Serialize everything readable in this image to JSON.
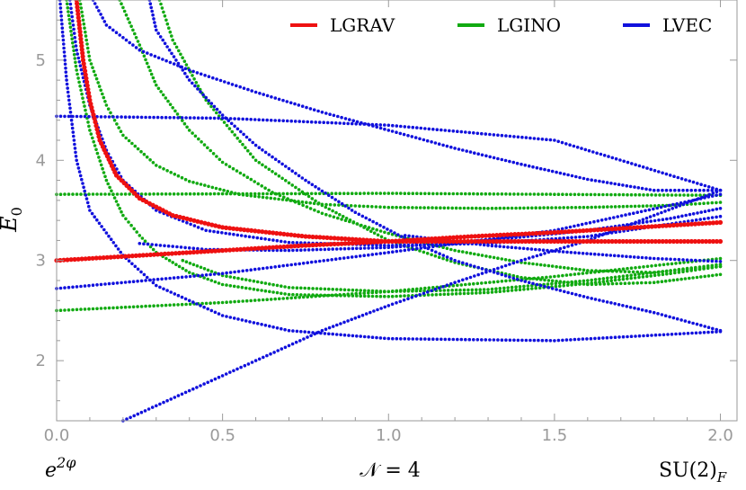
{
  "chart_data": {
    "type": "scatter",
    "xlim": [
      0,
      2.05
    ],
    "ylim": [
      1.4,
      5.6
    ],
    "xticks": [
      "0.0",
      "0.5",
      "1.0",
      "1.5",
      "2.0"
    ],
    "yticks": [
      "2",
      "3",
      "4",
      "5"
    ],
    "ylabel_main": "E",
    "ylabel_sub": "0",
    "grid": false,
    "legend_position": "top-right",
    "bottom_labels": {
      "left_base": "e",
      "left_sup": "2φ",
      "center": "𝒩 = 4",
      "right_base": "SU(2)",
      "right_sub": "F"
    },
    "colors": {
      "LGRAV": "#ee1111",
      "LGINO": "#11aa11",
      "LVEC": "#1111dd"
    },
    "series": [
      {
        "name": "LGRAV",
        "color": "#ee1111",
        "curves": [
          {
            "points": [
              [
                0,
                3.0
              ],
              [
                0.25,
                3.05
              ],
              [
                0.5,
                3.1
              ],
              [
                0.75,
                3.15
              ],
              [
                1.0,
                3.19
              ],
              [
                1.25,
                3.24
              ],
              [
                1.5,
                3.28
              ],
              [
                1.75,
                3.33
              ],
              [
                2.0,
                3.38
              ]
            ]
          },
          {
            "points": [
              [
                0.06,
                5.6
              ],
              [
                0.08,
                5.0
              ],
              [
                0.1,
                4.6
              ],
              [
                0.13,
                4.2
              ],
              [
                0.18,
                3.85
              ],
              [
                0.25,
                3.62
              ],
              [
                0.35,
                3.45
              ],
              [
                0.5,
                3.33
              ],
              [
                0.75,
                3.24
              ],
              [
                1.0,
                3.19
              ],
              [
                1.5,
                3.19
              ],
              [
                2.0,
                3.19
              ]
            ]
          }
        ]
      },
      {
        "name": "LGINO",
        "color": "#11aa11",
        "curves": [
          {
            "points": [
              [
                0,
                3.66
              ],
              [
                0.5,
                3.665
              ],
              [
                1.0,
                3.67
              ],
              [
                1.5,
                3.66
              ],
              [
                2.0,
                3.65
              ]
            ]
          },
          {
            "points": [
              [
                0,
                2.5
              ],
              [
                0.5,
                2.58
              ],
              [
                1.0,
                2.69
              ],
              [
                1.5,
                2.84
              ],
              [
                2.0,
                3.02
              ]
            ]
          },
          {
            "points": [
              [
                0.03,
                5.6
              ],
              [
                0.06,
                4.9
              ],
              [
                0.1,
                4.3
              ],
              [
                0.15,
                3.8
              ],
              [
                0.2,
                3.45
              ],
              [
                0.25,
                3.25
              ],
              [
                0.3,
                3.08
              ],
              [
                0.4,
                2.88
              ],
              [
                0.5,
                2.76
              ],
              [
                0.7,
                2.66
              ],
              [
                1.0,
                2.64
              ],
              [
                1.3,
                2.68
              ],
              [
                1.6,
                2.77
              ],
              [
                1.85,
                2.87
              ],
              [
                2.0,
                2.94
              ]
            ]
          },
          {
            "points": [
              [
                0.07,
                5.6
              ],
              [
                0.1,
                5.0
              ],
              [
                0.15,
                4.55
              ],
              [
                0.2,
                4.25
              ],
              [
                0.3,
                3.95
              ],
              [
                0.4,
                3.79
              ],
              [
                0.55,
                3.66
              ],
              [
                0.8,
                3.56
              ],
              [
                1.0,
                3.53
              ],
              [
                1.3,
                3.52
              ],
              [
                1.6,
                3.53
              ],
              [
                1.85,
                3.55
              ],
              [
                2.0,
                3.58
              ]
            ]
          },
          {
            "points": [
              [
                0.19,
                5.6
              ],
              [
                0.25,
                5.15
              ],
              [
                0.3,
                4.75
              ],
              [
                0.4,
                4.3
              ],
              [
                0.5,
                3.98
              ],
              [
                0.65,
                3.68
              ],
              [
                0.8,
                3.47
              ],
              [
                1.0,
                3.27
              ],
              [
                1.2,
                3.1
              ],
              [
                1.4,
                2.98
              ],
              [
                1.6,
                2.9
              ],
              [
                1.8,
                2.88
              ],
              [
                2.0,
                2.94
              ]
            ]
          },
          {
            "points": [
              [
                0.31,
                5.6
              ],
              [
                0.35,
                5.2
              ],
              [
                0.45,
                4.6
              ],
              [
                0.6,
                4.0
              ],
              [
                0.8,
                3.55
              ],
              [
                1.0,
                3.2
              ],
              [
                1.2,
                2.98
              ],
              [
                1.4,
                2.83
              ],
              [
                1.6,
                2.76
              ],
              [
                1.8,
                2.78
              ],
              [
                2.0,
                2.86
              ]
            ]
          },
          {
            "points": [
              [
                0.38,
                3.0
              ],
              [
                0.5,
                2.85
              ],
              [
                0.7,
                2.73
              ],
              [
                1.0,
                2.69
              ],
              [
                1.3,
                2.71
              ],
              [
                1.6,
                2.8
              ],
              [
                1.85,
                2.9
              ],
              [
                2.0,
                2.96
              ]
            ]
          }
        ]
      },
      {
        "name": "LVEC",
        "color": "#1111dd",
        "curves": [
          {
            "points": [
              [
                0,
                4.44
              ],
              [
                0.5,
                4.42
              ],
              [
                1.0,
                4.35
              ],
              [
                1.5,
                4.2
              ],
              [
                2.0,
                3.7
              ]
            ]
          },
          {
            "points": [
              [
                0,
                2.72
              ],
              [
                0.5,
                2.87
              ],
              [
                1.0,
                3.08
              ],
              [
                1.5,
                3.3
              ],
              [
                2.0,
                3.66
              ]
            ]
          },
          {
            "points": [
              [
                0.01,
                5.6
              ],
              [
                0.03,
                4.8
              ],
              [
                0.06,
                4.0
              ],
              [
                0.1,
                3.5
              ],
              [
                0.2,
                3.05
              ],
              [
                0.3,
                2.75
              ],
              [
                0.5,
                2.45
              ],
              [
                0.7,
                2.3
              ],
              [
                1.0,
                2.22
              ],
              [
                1.5,
                2.2
              ],
              [
                2.0,
                2.29
              ]
            ]
          },
          {
            "points": [
              [
                0.2,
                1.4
              ],
              [
                0.4,
                1.7
              ],
              [
                0.6,
                2.0
              ],
              [
                0.8,
                2.3
              ],
              [
                1.0,
                2.55
              ],
              [
                1.2,
                2.78
              ],
              [
                1.4,
                3.0
              ],
              [
                1.6,
                3.2
              ],
              [
                1.8,
                3.45
              ],
              [
                2.0,
                3.7
              ]
            ]
          },
          {
            "points": [
              [
                0.04,
                5.6
              ],
              [
                0.06,
                5.1
              ],
              [
                0.1,
                4.55
              ],
              [
                0.15,
                4.1
              ],
              [
                0.2,
                3.8
              ],
              [
                0.3,
                3.5
              ],
              [
                0.45,
                3.3
              ],
              [
                0.7,
                3.18
              ],
              [
                1.0,
                3.15
              ],
              [
                1.3,
                3.17
              ],
              [
                1.6,
                3.24
              ],
              [
                2.0,
                3.44
              ]
            ]
          },
          {
            "points": [
              [
                0.11,
                5.6
              ],
              [
                0.15,
                5.35
              ],
              [
                0.25,
                5.1
              ],
              [
                0.4,
                4.9
              ],
              [
                0.6,
                4.68
              ],
              [
                0.8,
                4.48
              ],
              [
                1.0,
                4.3
              ],
              [
                1.2,
                4.12
              ],
              [
                1.4,
                3.96
              ],
              [
                1.6,
                3.81
              ],
              [
                1.8,
                3.7
              ],
              [
                2.0,
                3.7
              ]
            ]
          },
          {
            "points": [
              [
                0.28,
                5.6
              ],
              [
                0.3,
                5.3
              ],
              [
                0.4,
                4.8
              ],
              [
                0.5,
                4.45
              ],
              [
                0.6,
                4.15
              ],
              [
                0.75,
                3.8
              ],
              [
                0.9,
                3.48
              ],
              [
                1.05,
                3.22
              ],
              [
                1.2,
                3.0
              ],
              [
                1.4,
                2.8
              ],
              [
                1.6,
                2.63
              ],
              [
                1.8,
                2.48
              ],
              [
                2.0,
                2.3
              ]
            ]
          },
          {
            "points": [
              [
                0.25,
                3.17
              ],
              [
                0.45,
                3.11
              ],
              [
                0.7,
                3.1
              ],
              [
                1.0,
                3.13
              ],
              [
                1.3,
                3.2
              ],
              [
                1.6,
                3.3
              ],
              [
                1.85,
                3.42
              ],
              [
                2.0,
                3.52
              ]
            ]
          },
          {
            "points": [
              [
                1.05,
                3.25
              ],
              [
                1.3,
                3.15
              ],
              [
                1.55,
                3.08
              ],
              [
                1.8,
                3.02
              ],
              [
                2.0,
                2.99
              ]
            ]
          }
        ]
      }
    ]
  }
}
